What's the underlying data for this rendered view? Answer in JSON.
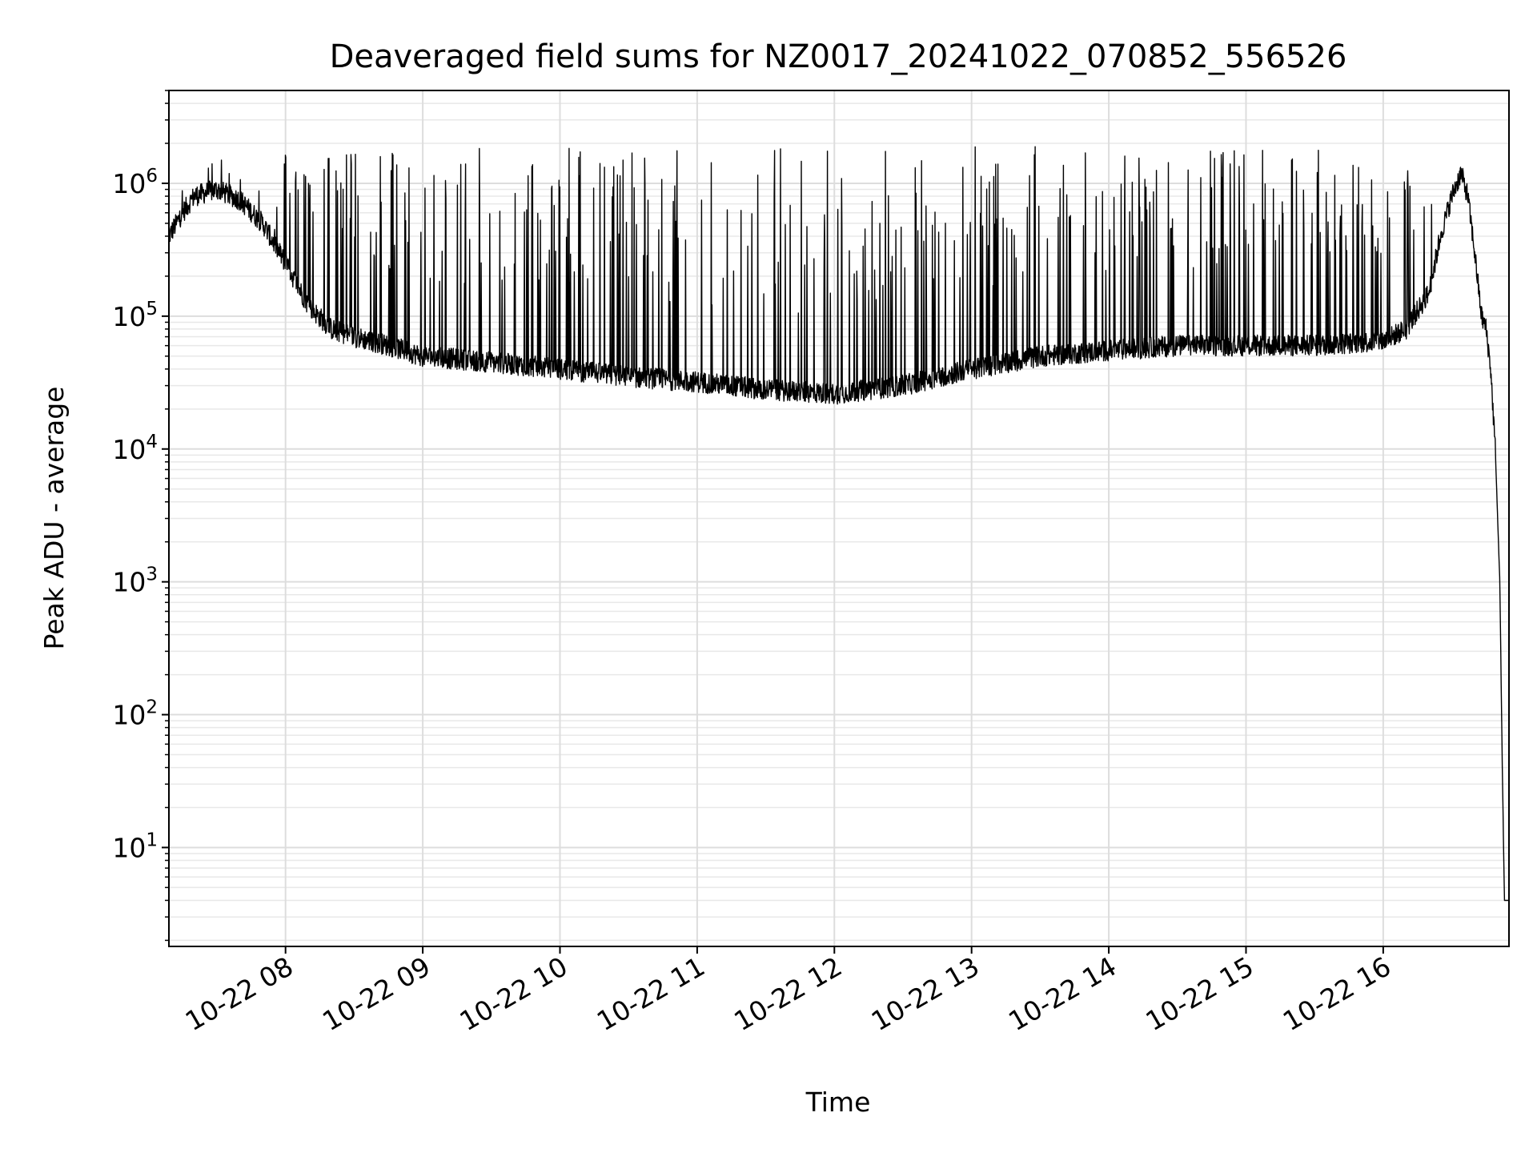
{
  "chart_data": {
    "type": "line",
    "title": "Deaveraged field sums for NZ0017_20241022_070852_556526",
    "xlabel": "Time",
    "ylabel": "Peak ADU - average",
    "y_scale": "log",
    "ylim": [
      1.8,
      5000000
    ],
    "xlim": [
      "2024-10-22 07:09",
      "2024-10-22 16:55"
    ],
    "x_ticks": [
      "2024-10-22 08:00",
      "2024-10-22 09:00",
      "2024-10-22 10:00",
      "2024-10-22 11:00",
      "2024-10-22 12:00",
      "2024-10-22 13:00",
      "2024-10-22 14:00",
      "2024-10-22 15:00",
      "2024-10-22 16:00"
    ],
    "x_tick_labels": [
      "10-22 08",
      "10-22 09",
      "10-22 10",
      "10-22 11",
      "10-22 12",
      "10-22 13",
      "10-22 14",
      "10-22 15",
      "10-22 16"
    ],
    "y_ticks": [
      10,
      100,
      1000,
      10000,
      100000,
      1000000
    ],
    "y_tick_exponents": [
      "1",
      "2",
      "3",
      "4",
      "5",
      "6"
    ],
    "y_tick_base": "10",
    "grid": true,
    "line_color": "#000000",
    "series": [
      {
        "x": [
          "2024-10-22 07:09",
          "2024-10-22 07:15",
          "2024-10-22 07:20",
          "2024-10-22 07:30",
          "2024-10-22 07:40",
          "2024-10-22 07:50",
          "2024-10-22 08:00",
          "2024-10-22 08:10",
          "2024-10-22 08:20",
          "2024-10-22 08:30",
          "2024-10-22 08:45",
          "2024-10-22 09:00",
          "2024-10-22 09:30",
          "2024-10-22 10:00",
          "2024-10-22 10:30",
          "2024-10-22 11:00",
          "2024-10-22 11:30",
          "2024-10-22 12:00",
          "2024-10-22 12:30",
          "2024-10-22 13:00",
          "2024-10-22 13:30",
          "2024-10-22 14:00",
          "2024-10-22 14:30",
          "2024-10-22 15:00",
          "2024-10-22 15:30",
          "2024-10-22 16:00",
          "2024-10-22 16:10",
          "2024-10-22 16:20",
          "2024-10-22 16:25",
          "2024-10-22 16:30",
          "2024-10-22 16:34",
          "2024-10-22 16:37",
          "2024-10-22 16:40",
          "2024-10-22 16:43",
          "2024-10-22 16:45",
          "2024-10-22 16:47",
          "2024-10-22 16:49",
          "2024-10-22 16:51",
          "2024-10-22 16:52",
          "2024-10-22 16:53",
          "2024-10-22 16:55"
        ],
        "y": [
          400000,
          600000,
          800000,
          900000,
          750000,
          500000,
          250000,
          120000,
          80000,
          70000,
          60000,
          50000,
          45000,
          40000,
          35000,
          32000,
          28000,
          26000,
          30000,
          40000,
          50000,
          55000,
          60000,
          60000,
          60000,
          65000,
          80000,
          150000,
          400000,
          800000,
          1200000,
          800000,
          300000,
          100000,
          80000,
          40000,
          10000,
          1000,
          50,
          4,
          4
        ]
      }
    ]
  }
}
